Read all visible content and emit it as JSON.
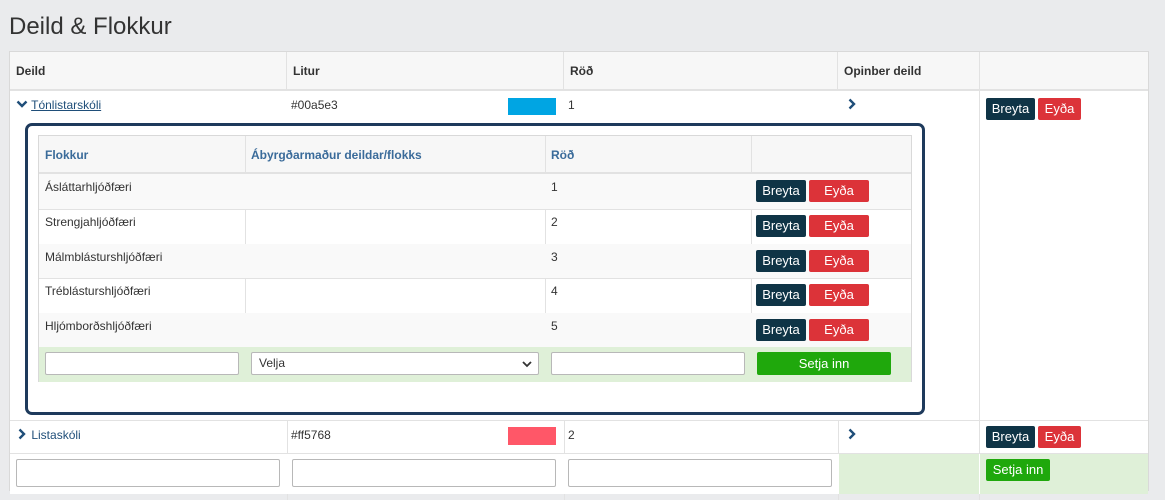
{
  "page_title": "Deild & Flokkur",
  "outer_table": {
    "headers": [
      "Deild",
      "Litur",
      "Röð",
      "Opinber deild",
      ""
    ],
    "rows": [
      {
        "name": "Tónlistarskóli",
        "color_text": "#00a5e3",
        "color": "#00a5e3",
        "order": "1",
        "expanded": true
      },
      {
        "name": "Listaskóli",
        "color_text": "#ff5768",
        "color": "#ff5768",
        "order": "2",
        "expanded": false
      }
    ],
    "edit_label": "Breyta",
    "delete_label": "Eyða",
    "add_label": "Setja inn"
  },
  "inner_table": {
    "headers": [
      "Flokkur",
      "Ábyrgðarmaður deildar/flokks",
      "Röð",
      ""
    ],
    "rows": [
      {
        "name": "Ásláttarhljóðfæri",
        "responsible": "",
        "order": "1"
      },
      {
        "name": "Strengjahljóðfæri",
        "responsible": "",
        "order": "2"
      },
      {
        "name": "Málmblásturshljóðfæri",
        "responsible": "",
        "order": "3"
      },
      {
        "name": "Tréblásturshljóðfæri",
        "responsible": "",
        "order": "4"
      },
      {
        "name": "Hljómborðshljóðfæri",
        "responsible": "",
        "order": "5"
      }
    ],
    "edit_label": "Breyta",
    "delete_label": "Eyða",
    "select_value": "Velja",
    "add_label": "Setja inn"
  },
  "colors": {
    "edit_button": "#0f3446",
    "delete_button": "#dc3339",
    "add_button": "#1fa80c",
    "inner_border": "#1e3a5c",
    "add_row_bg": "#dff0d8"
  }
}
